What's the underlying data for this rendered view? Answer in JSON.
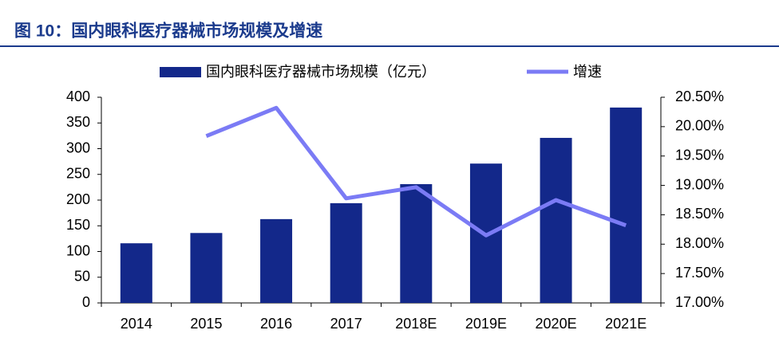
{
  "chart_data": {
    "type": "bar_line",
    "title": "图 10：国内眼科医疗器械市场规模及增速",
    "categories": [
      "2014",
      "2015",
      "2016",
      "2017",
      "2018E",
      "2019E",
      "2020E",
      "2021E"
    ],
    "series": [
      {
        "name": "国内眼科医疗器械市场规模（亿元）",
        "type": "bar",
        "color": "#13288a",
        "values": [
          116,
          136,
          163,
          194,
          231,
          271,
          321,
          380
        ]
      },
      {
        "name": "增速",
        "type": "line",
        "color": "#7b7bf5",
        "axis": "y2",
        "values": [
          null,
          19.84,
          20.32,
          18.78,
          18.97,
          18.15,
          18.75,
          18.32
        ]
      }
    ],
    "ylim": [
      0,
      400
    ],
    "yticks": [
      0,
      50,
      100,
      150,
      200,
      250,
      300,
      350,
      400
    ],
    "y2lim": [
      17,
      20.5
    ],
    "y2ticks": [
      {
        "value": 17,
        "label": "17.00%"
      },
      {
        "value": 17.5,
        "label": "17.50%"
      },
      {
        "value": 18,
        "label": "18.00%"
      },
      {
        "value": 18.5,
        "label": "18.50%"
      },
      {
        "value": 19,
        "label": "19.00%"
      },
      {
        "value": 19.5,
        "label": "19.50%"
      },
      {
        "value": 20,
        "label": "20.00%"
      },
      {
        "value": 20.5,
        "label": "20.50%"
      }
    ]
  }
}
